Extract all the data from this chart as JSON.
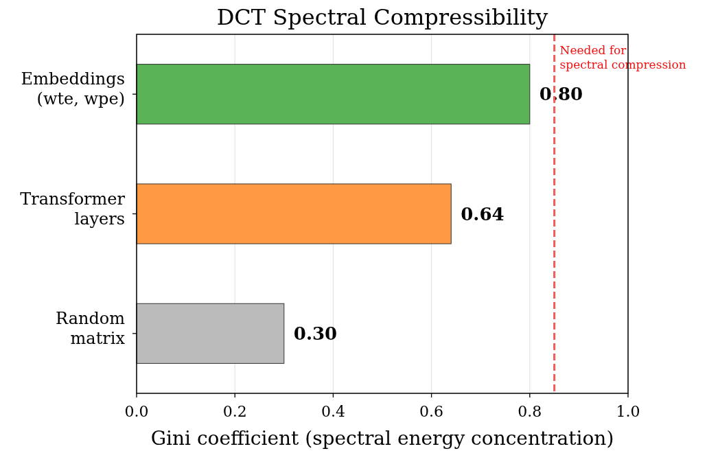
{
  "chart_data": {
    "type": "bar",
    "orientation": "horizontal",
    "title": "DCT Spectral Compressibility",
    "xlabel": "Gini coefficient (spectral energy concentration)",
    "categories": [
      "Embeddings\n(wte, wpe)",
      "Transformer\nlayers",
      "Random\nmatrix"
    ],
    "values": [
      0.8,
      0.64,
      0.3
    ],
    "colors": [
      "#59b356",
      "#fe9a43",
      "#bbbbbb"
    ],
    "value_labels": [
      "0.80",
      "0.64",
      "0.30"
    ],
    "xlim": [
      0,
      1
    ],
    "xticks": [
      {
        "value": 0,
        "label": "0.0"
      },
      {
        "value": 0.2,
        "label": "0.2"
      },
      {
        "value": 0.4,
        "label": "0.4"
      },
      {
        "value": 0.6,
        "label": "0.6"
      },
      {
        "value": 0.8,
        "label": "0.8"
      },
      {
        "value": 1,
        "label": "1.0"
      }
    ],
    "grid": "x",
    "ref_lines": [
      {
        "axis": "x",
        "value": 0.85,
        "label": "Needed for\nspectral compression",
        "color": "#f55a5a",
        "line_style": "dashed"
      }
    ]
  }
}
